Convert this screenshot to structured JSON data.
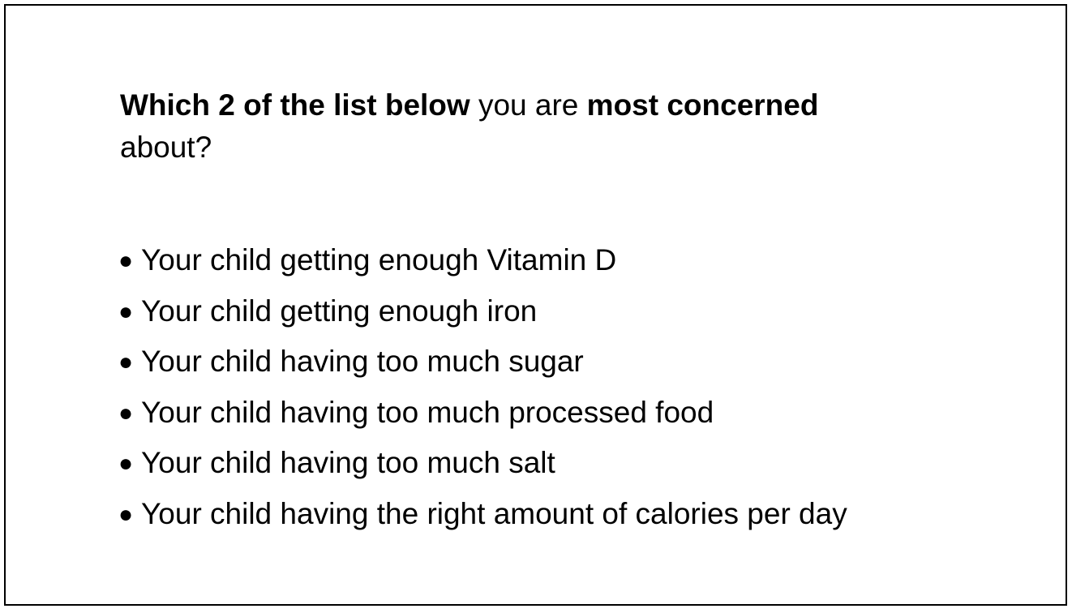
{
  "question": {
    "part1_bold": "Which 2 of the list below",
    "part2": " you are ",
    "part3_bold": "most concerned",
    "part4": " about?"
  },
  "options": [
    "Your child getting enough Vitamin D",
    "Your child getting enough iron",
    "Your child having too much sugar",
    "Your child having too much processed food",
    "Your child having too much salt",
    "Your child having the right amount of calories per day"
  ],
  "bullet_glyph": "●"
}
